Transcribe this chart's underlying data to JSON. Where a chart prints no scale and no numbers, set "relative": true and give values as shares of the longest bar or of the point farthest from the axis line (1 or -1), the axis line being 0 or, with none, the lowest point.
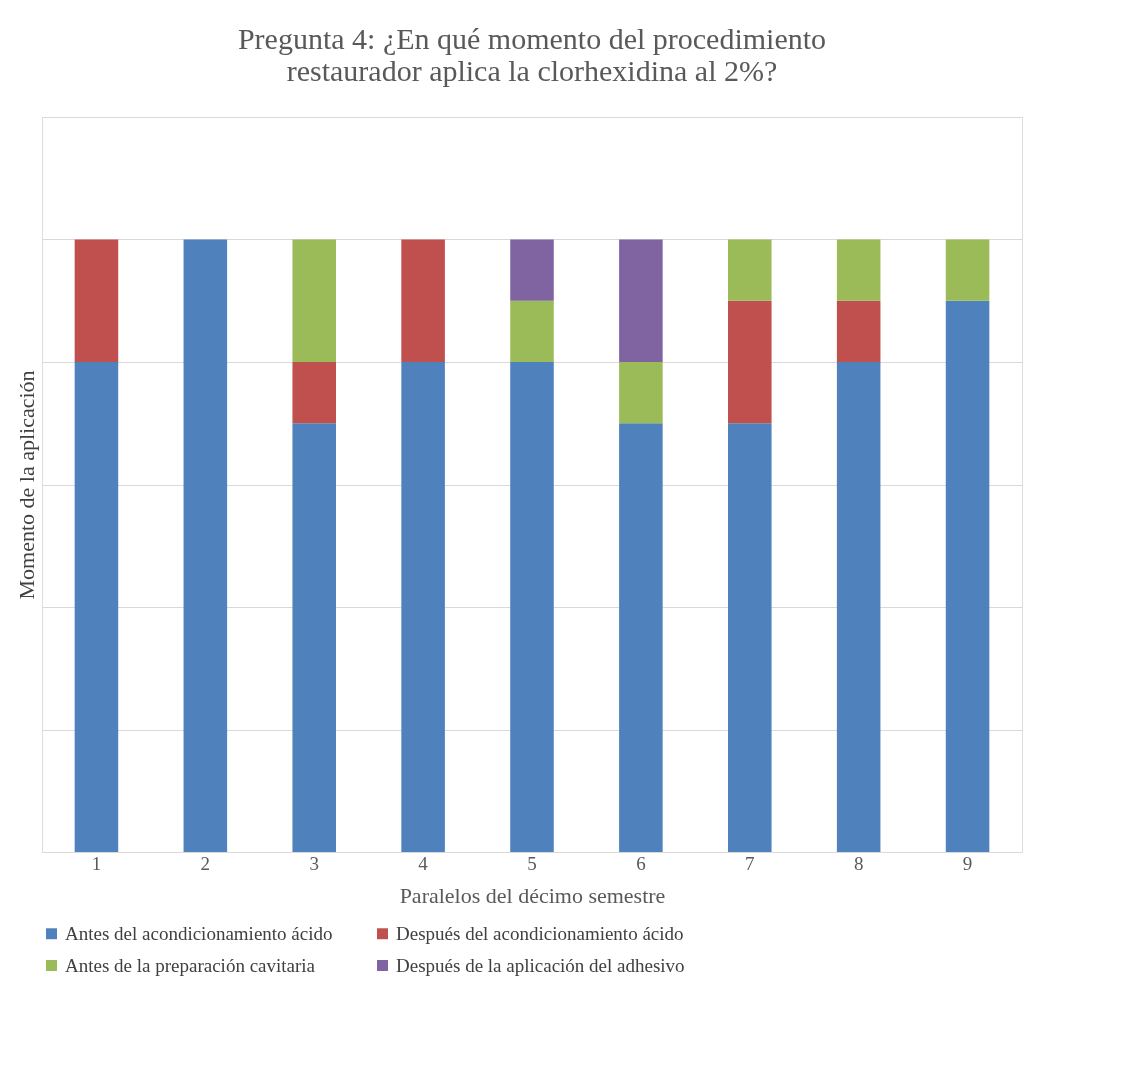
{
  "chart_data": {
    "type": "bar",
    "stacked": true,
    "relative": true,
    "title": "Pregunta 4: ¿En qué momento del procedimiento restaurador aplica la clorhexidina al 2%?",
    "xlabel": "Paralelos del décimo semestre",
    "ylabel": "Momento de la aplicación",
    "categories": [
      "1",
      "2",
      "3",
      "4",
      "5",
      "6",
      "7",
      "8",
      "9"
    ],
    "grid": "y",
    "legend": "bottom",
    "series": [
      {
        "name": "Antes del acondicionamiento ácido",
        "color": "#4f81bd",
        "values": [
          0.8,
          1.0,
          0.7,
          0.8,
          0.8,
          0.7,
          0.7,
          0.8,
          0.9
        ]
      },
      {
        "name": "Después del acondicionamiento ácido",
        "color": "#c0504d",
        "values": [
          0.2,
          null,
          0.1,
          0.2,
          null,
          null,
          0.2,
          0.1,
          null
        ]
      },
      {
        "name": "Antes de la preparación cavitaria",
        "color": "#9bbb59",
        "values": [
          null,
          null,
          0.2,
          null,
          0.1,
          0.1,
          0.1,
          0.1,
          0.1
        ]
      },
      {
        "name": "Después de la aplicación del adhesivo",
        "color": "#8064a2",
        "values": [
          null,
          null,
          null,
          null,
          0.1,
          0.2,
          null,
          null,
          null
        ]
      }
    ]
  }
}
